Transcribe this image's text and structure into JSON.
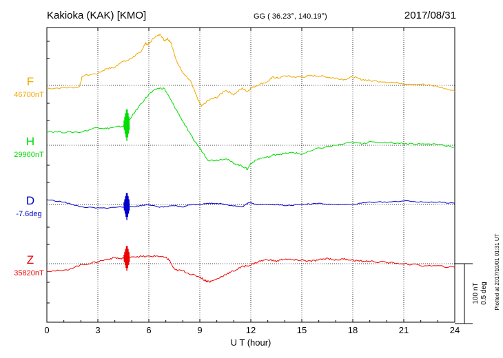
{
  "header": {
    "station": "Kakioka (KAK)  [KMO]",
    "coords": "GG ( 36.23°, 140.19°)",
    "date": "2017/08/31"
  },
  "colors": {
    "F": "#f0a800",
    "H": "#00dd00",
    "D": "#0000cc",
    "Z": "#ee0000"
  },
  "chart_data": {
    "type": "line",
    "title": "Kakioka (KAK)  [KMO]",
    "xlabel": "U T (hour)",
    "xlim": [
      0,
      24
    ],
    "xticks": [
      "0",
      "3",
      "6",
      "9",
      "12",
      "15",
      "18",
      "21",
      "24"
    ],
    "grid": true,
    "scale_bar": {
      "label1": "100 nT",
      "label2": "0.5 deg"
    },
    "plotted_note": "Plotted at 2017/10/01 01:31  UT",
    "series": [
      {
        "name": "F",
        "baseline_label": "46700nT",
        "x": [
          0,
          1,
          1.9,
          2.1,
          3,
          3.5,
          4,
          4.3,
          4.8,
          5.2,
          5.5,
          5.8,
          6,
          6.3,
          6.7,
          6.9,
          7.1,
          7.3,
          7.6,
          8,
          8.5,
          8.9,
          9.1,
          9.5,
          10,
          10.5,
          11,
          11.5,
          11.8,
          12,
          12.5,
          13,
          13.3,
          13.6,
          14,
          14.5,
          15,
          15.5,
          16,
          16.5,
          17,
          17.5,
          18,
          18.5,
          19,
          20,
          21,
          22,
          23,
          24
        ],
        "v": [
          -5,
          -4,
          -3,
          16,
          20,
          28,
          30,
          38,
          42,
          50,
          55,
          70,
          68,
          80,
          85,
          75,
          78,
          72,
          42,
          22,
          5,
          -25,
          -35,
          -25,
          -20,
          -8,
          -15,
          -5,
          -10,
          -5,
          2,
          6,
          14,
          12,
          16,
          14,
          14,
          16,
          16,
          14,
          12,
          10,
          14,
          10,
          8,
          6,
          3,
          2,
          -2,
          -10
        ]
      },
      {
        "name": "H",
        "baseline_label": "29960nT",
        "x": [
          0,
          1,
          2,
          3,
          3.5,
          4,
          4.5,
          4.7,
          4.8,
          5.5,
          6,
          6.5,
          6.9,
          7.2,
          7.6,
          8,
          8.5,
          9,
          9.5,
          10,
          10.5,
          11,
          11.5,
          11.8,
          12,
          12.5,
          13,
          13.5,
          14,
          14.5,
          15,
          16,
          17,
          18,
          18.5,
          19,
          20,
          21,
          22,
          23,
          24
        ],
        "v": [
          23,
          22,
          22,
          30,
          28,
          30,
          32,
          35,
          40,
          68,
          85,
          95,
          95,
          80,
          60,
          40,
          15,
          -5,
          -25,
          -25,
          -22,
          -30,
          -35,
          -40,
          -30,
          -22,
          -20,
          -15,
          -14,
          -12,
          -15,
          -5,
          0,
          5,
          3,
          5,
          5,
          3,
          2,
          2,
          -3
        ]
      },
      {
        "name": "D",
        "baseline_label": "-7.6deg",
        "x": [
          0,
          1,
          1.5,
          2,
          3,
          3.5,
          4.3,
          5,
          5.5,
          6,
          6.5,
          7,
          7.5,
          8,
          8.5,
          9,
          9.5,
          10,
          10.5,
          11,
          11.5,
          11.7,
          11.9,
          12.3,
          12.8,
          13.5,
          14,
          15,
          16,
          17,
          18,
          19,
          20,
          21,
          22,
          23,
          24
        ],
        "v": [
          0.04,
          0.02,
          0,
          -0.02,
          -0.03,
          -0.03,
          -0.02,
          -0.02,
          -0.01,
          0,
          -0.02,
          -0.02,
          -0.01,
          -0.02,
          0,
          0,
          0.01,
          0.01,
          0,
          -0.01,
          -0.02,
          0,
          0.02,
          0,
          0,
          0,
          -0.01,
          0,
          0.01,
          0,
          0,
          0.02,
          0.02,
          0.03,
          0.02,
          0.02,
          0.01
        ]
      },
      {
        "name": "Z",
        "baseline_label": "35820nT",
        "x": [
          0,
          1,
          2,
          2.8,
          3.5,
          4,
          4.4,
          4.8,
          5.5,
          6,
          6.5,
          7,
          7.2,
          7.5,
          8,
          8.5,
          9,
          9.3,
          9.6,
          10,
          10.5,
          11,
          11.5,
          12,
          12.5,
          13,
          13.5,
          14,
          14.5,
          15,
          15.5,
          16,
          16.5,
          17,
          17.5,
          18,
          18.5,
          19,
          20,
          21,
          22,
          23,
          24
        ],
        "v": [
          -12,
          -12,
          -2,
          2,
          7,
          10,
          8,
          12,
          12,
          12,
          13,
          10,
          6,
          -10,
          -12,
          -18,
          -22,
          -28,
          -30,
          -26,
          -18,
          -12,
          -5,
          -2,
          4,
          7,
          4,
          8,
          6,
          6,
          4,
          6,
          9,
          6,
          8,
          6,
          4,
          4,
          2,
          0,
          -3,
          -4,
          -6
        ]
      }
    ]
  }
}
